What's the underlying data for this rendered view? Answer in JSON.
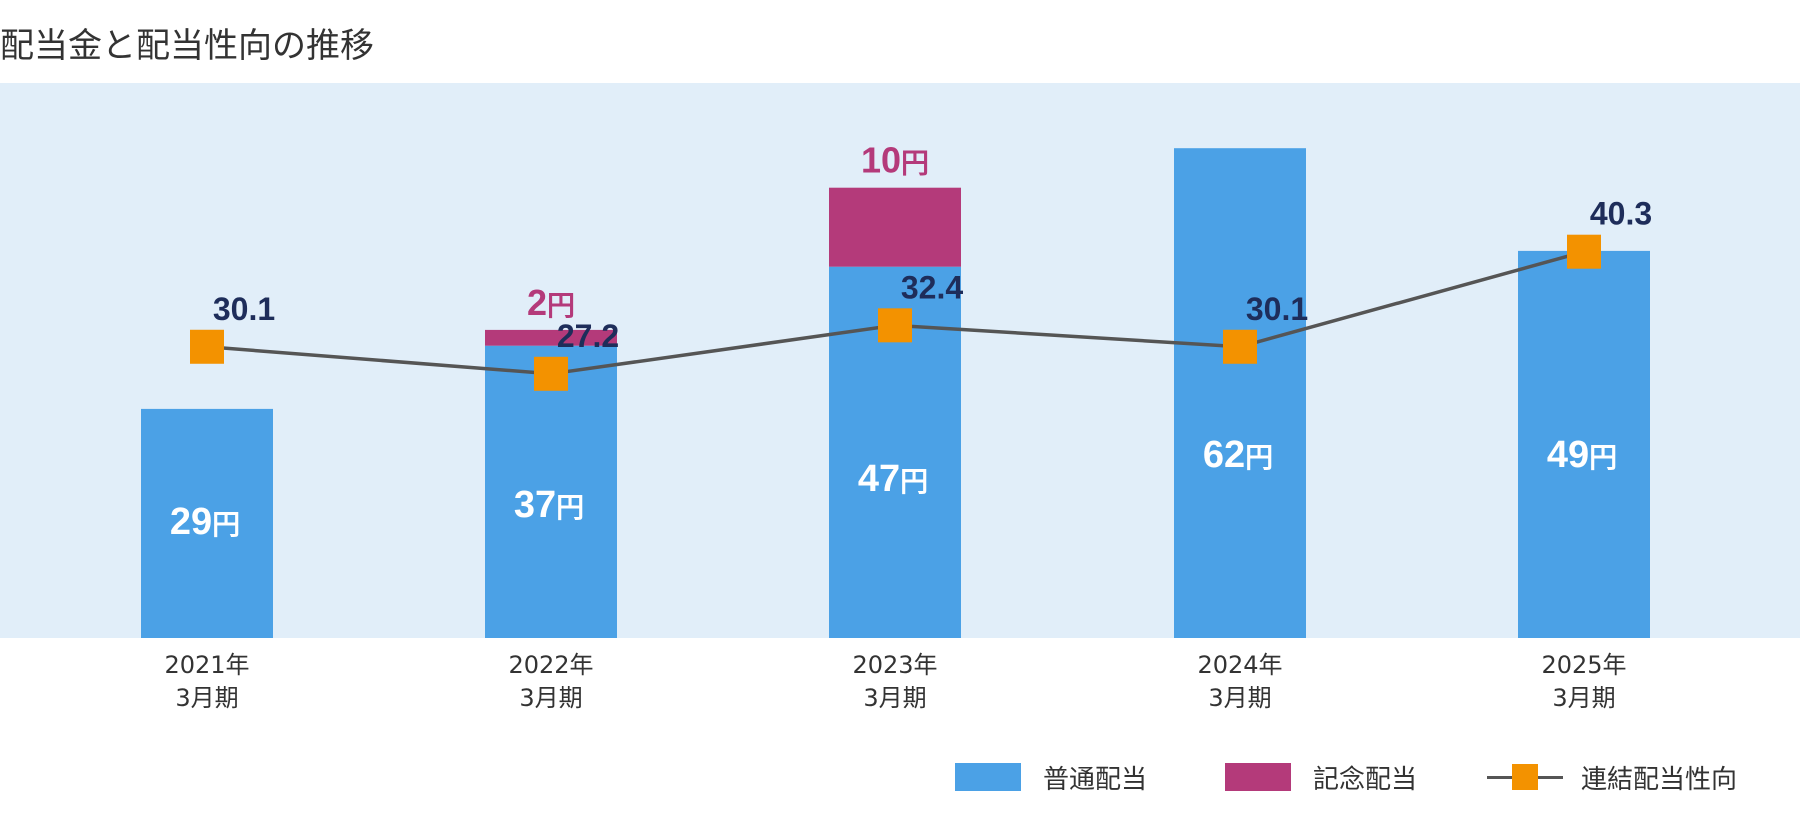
{
  "title": "配当金と配当性向の推移",
  "chart_data": {
    "type": "bar",
    "stacked": true,
    "categories": [
      {
        "year": "2021年",
        "period": "3月期"
      },
      {
        "year": "2022年",
        "period": "3月期"
      },
      {
        "year": "2023年",
        "period": "3月期"
      },
      {
        "year": "2024年",
        "period": "3月期"
      },
      {
        "year": "2025年",
        "period": "3月期"
      }
    ],
    "unit": "円",
    "series": [
      {
        "name": "普通配当",
        "kind": "bar",
        "color": "#4ba1e6",
        "values": [
          29,
          37,
          47,
          62,
          49
        ],
        "labels": [
          "29",
          "37",
          "47",
          "62",
          "49"
        ],
        "label_color": "#ffffff"
      },
      {
        "name": "記念配当",
        "kind": "bar",
        "color": "#b43a7a",
        "values": [
          0,
          2,
          10,
          0,
          0
        ],
        "labels": [
          "",
          "2",
          "10",
          "",
          ""
        ],
        "label_color": "#b43a7a"
      },
      {
        "name": "連結配当性向",
        "kind": "line",
        "color": "#555555",
        "marker_color": "#f39200",
        "values": [
          30.1,
          27.2,
          32.4,
          30.1,
          40.3
        ],
        "labels": [
          "30.1",
          "27.2",
          "32.4",
          "30.1",
          "40.3"
        ],
        "label_color": "#1e2d5a"
      }
    ],
    "plot_background": "#e1eef9",
    "grid": false,
    "legend_position": "bottom-right"
  }
}
